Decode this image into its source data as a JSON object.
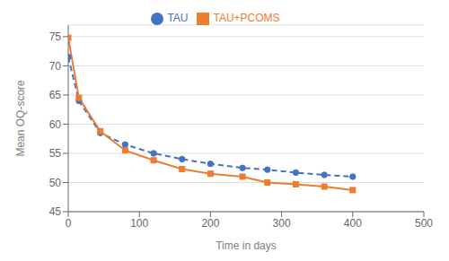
{
  "chart_data": {
    "type": "line",
    "x_label": "Time in days",
    "y_label": "Mean OQ-score",
    "x": [
      0,
      15,
      45,
      80,
      120,
      160,
      200,
      245,
      280,
      320,
      360,
      400
    ],
    "series": [
      {
        "name": "TAU",
        "color": "#4472C4",
        "values": [
          71.5,
          64.0,
          58.5,
          56.5,
          55.0,
          54.0,
          53.2,
          52.5,
          52.2,
          51.7,
          51.3,
          51.0
        ],
        "marker": "circle",
        "line_style": "dashed"
      },
      {
        "name": "TAU+PCOMS",
        "color": "#ED7D31",
        "values": [
          74.8,
          64.5,
          58.8,
          55.5,
          53.8,
          52.3,
          51.5,
          51.0,
          50.0,
          49.7,
          49.3,
          48.7
        ],
        "marker": "square",
        "line_style": "solid"
      }
    ],
    "xlim": [
      0,
      500
    ],
    "ylim": [
      45,
      77
    ],
    "xticks": [
      0,
      100,
      200,
      300,
      400,
      500
    ],
    "yticks": [
      45,
      50,
      55,
      60,
      65,
      70,
      75
    ],
    "grid": true,
    "legend": "top"
  }
}
